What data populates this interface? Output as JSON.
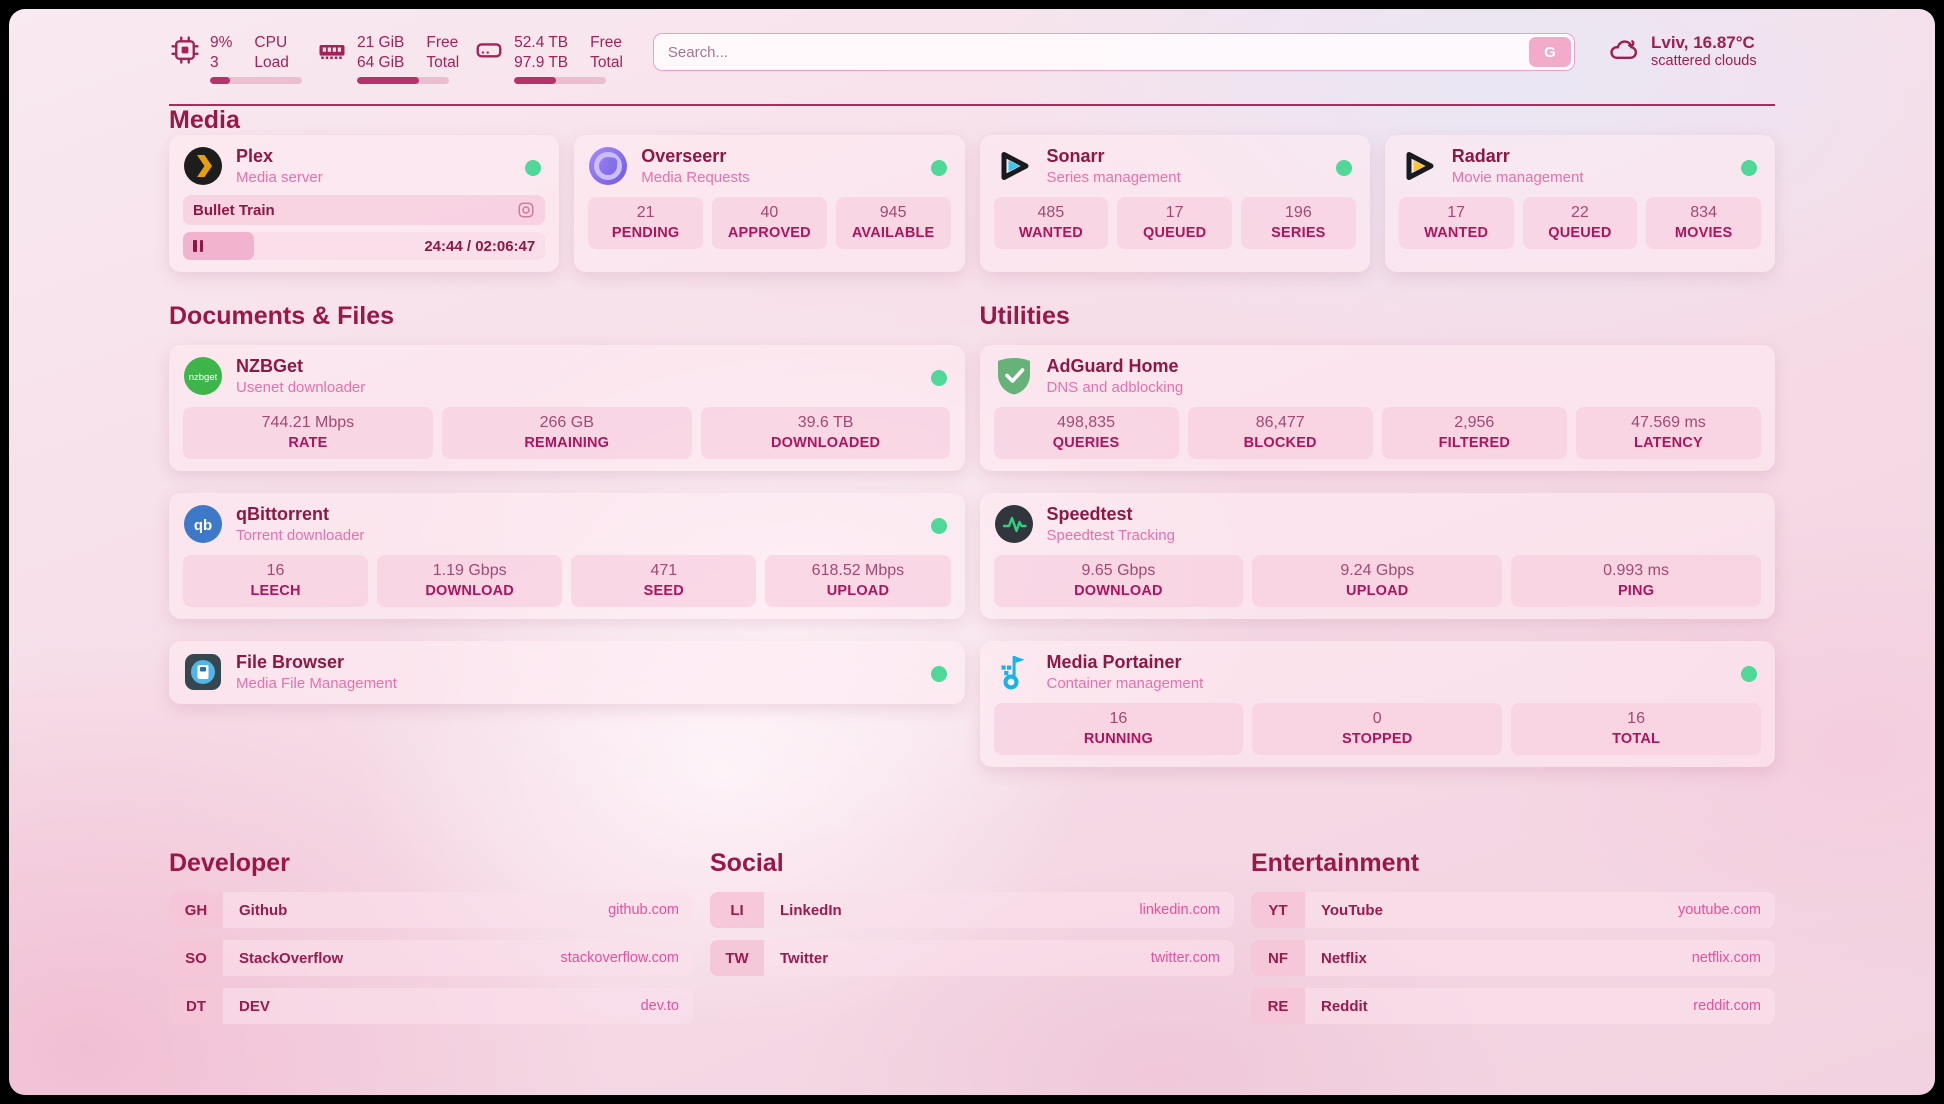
{
  "theme": {
    "accent": "#9b1747",
    "subtitle_pink": "#ec6fa9",
    "url_pink": "#ea4f9b",
    "status_dot_green": "#50d898",
    "bar_fill": "#b5326b"
  },
  "topbar": {
    "cpu": {
      "icon": "cpu-icon",
      "value_top": "9%",
      "value_bottom": "3",
      "label_top": "CPU",
      "label_bottom": "Load",
      "progress_pct": 22
    },
    "memory": {
      "icon": "memory-icon",
      "value_top": "21 GiB",
      "value_bottom": "64 GiB",
      "label_top": "Free",
      "label_bottom": "Total",
      "progress_pct": 67
    },
    "disk": {
      "icon": "disk-icon",
      "value_top": "52.4 TB",
      "value_bottom": "97.9 TB",
      "label_top": "Free",
      "label_bottom": "Total",
      "progress_pct": 46
    },
    "search": {
      "placeholder": "Search...",
      "button_label": "G"
    },
    "weather": {
      "icon": "cloud-icon",
      "location": "Lviv, 16.87°C",
      "condition": "scattered clouds"
    }
  },
  "sections": {
    "media": {
      "title": "Media",
      "cards": [
        {
          "icon": "plex-icon",
          "title": "Plex",
          "subtitle": "Media server",
          "online": true,
          "player": {
            "track": "Bullet Train",
            "time": "24:44 / 02:06:47",
            "progress_pct": 19.6
          }
        },
        {
          "icon": "overseerr-icon",
          "title": "Overseerr",
          "subtitle": "Media Requests",
          "online": true,
          "stats": [
            {
              "value": "21",
              "label": "PENDING"
            },
            {
              "value": "40",
              "label": "APPROVED"
            },
            {
              "value": "945",
              "label": "AVAILABLE"
            }
          ]
        },
        {
          "icon": "sonarr-icon",
          "title": "Sonarr",
          "subtitle": "Series management",
          "online": true,
          "stats": [
            {
              "value": "485",
              "label": "WANTED"
            },
            {
              "value": "17",
              "label": "QUEUED"
            },
            {
              "value": "196",
              "label": "SERIES"
            }
          ]
        },
        {
          "icon": "radarr-icon",
          "title": "Radarr",
          "subtitle": "Movie management",
          "online": true,
          "stats": [
            {
              "value": "17",
              "label": "WANTED"
            },
            {
              "value": "22",
              "label": "QUEUED"
            },
            {
              "value": "834",
              "label": "MOVIES"
            }
          ]
        }
      ]
    },
    "documents": {
      "title": "Documents & Files",
      "cards": [
        {
          "icon": "nzbget-icon",
          "title": "NZBGet",
          "subtitle": "Usenet downloader",
          "online": true,
          "stats": [
            {
              "value": "744.21 Mbps",
              "label": "RATE"
            },
            {
              "value": "266 GB",
              "label": "REMAINING"
            },
            {
              "value": "39.6 TB",
              "label": "DOWNLOADED"
            }
          ]
        },
        {
          "icon": "qbittorrent-icon",
          "title": "qBittorrent",
          "subtitle": "Torrent downloader",
          "online": true,
          "stats": [
            {
              "value": "16",
              "label": "LEECH"
            },
            {
              "value": "1.19 Gbps",
              "label": "DOWNLOAD"
            },
            {
              "value": "471",
              "label": "SEED"
            },
            {
              "value": "618.52 Mbps",
              "label": "UPLOAD"
            }
          ]
        },
        {
          "icon": "filebrowser-icon",
          "title": "File Browser",
          "subtitle": "Media File Management",
          "online": true,
          "stats": []
        }
      ]
    },
    "utilities": {
      "title": "Utilities",
      "cards": [
        {
          "icon": "adguard-icon",
          "title": "AdGuard Home",
          "subtitle": "DNS and adblocking",
          "online": false,
          "stats": [
            {
              "value": "498,835",
              "label": "QUERIES"
            },
            {
              "value": "86,477",
              "label": "BLOCKED"
            },
            {
              "value": "2,956",
              "label": "FILTERED"
            },
            {
              "value": "47.569 ms",
              "label": "LATENCY"
            }
          ]
        },
        {
          "icon": "speedtest-icon",
          "title": "Speedtest",
          "subtitle": "Speedtest Tracking",
          "online": false,
          "stats": [
            {
              "value": "9.65 Gbps",
              "label": "DOWNLOAD"
            },
            {
              "value": "9.24 Gbps",
              "label": "UPLOAD"
            },
            {
              "value": "0.993 ms",
              "label": "PING"
            }
          ]
        },
        {
          "icon": "portainer-icon",
          "title": "Media Portainer",
          "subtitle": "Container management",
          "online": true,
          "stats": [
            {
              "value": "16",
              "label": "RUNNING"
            },
            {
              "value": "0",
              "label": "STOPPED"
            },
            {
              "value": "16",
              "label": "TOTAL"
            }
          ]
        }
      ]
    },
    "bookmarks": [
      {
        "title": "Developer",
        "items": [
          {
            "abbr": "GH",
            "name": "Github",
            "url": "github.com"
          },
          {
            "abbr": "SO",
            "name": "StackOverflow",
            "url": "stackoverflow.com"
          },
          {
            "abbr": "DT",
            "name": "DEV",
            "url": "dev.to"
          }
        ]
      },
      {
        "title": "Social",
        "items": [
          {
            "abbr": "LI",
            "name": "LinkedIn",
            "url": "linkedin.com"
          },
          {
            "abbr": "TW",
            "name": "Twitter",
            "url": "twitter.com"
          }
        ]
      },
      {
        "title": "Entertainment",
        "items": [
          {
            "abbr": "YT",
            "name": "YouTube",
            "url": "youtube.com"
          },
          {
            "abbr": "NF",
            "name": "Netflix",
            "url": "netflix.com"
          },
          {
            "abbr": "RE",
            "name": "Reddit",
            "url": "reddit.com"
          }
        ]
      }
    ]
  }
}
